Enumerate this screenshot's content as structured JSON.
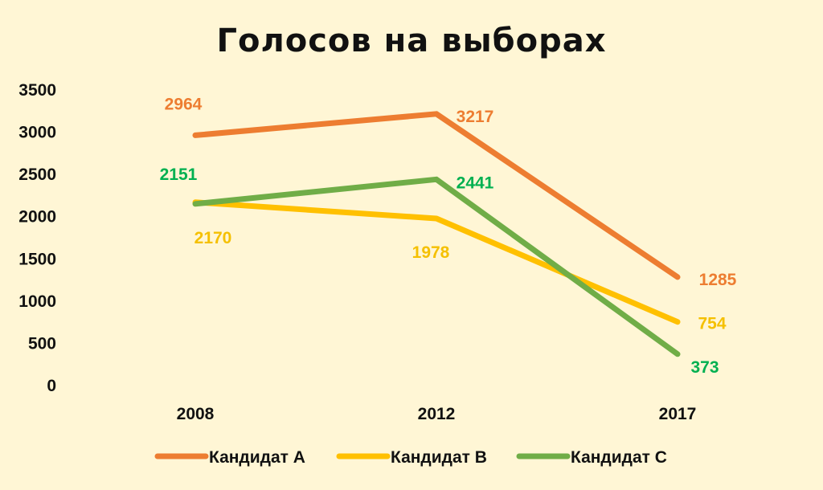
{
  "chart_data": {
    "type": "line",
    "title": "Голосов на выборах",
    "xlabel": "",
    "ylabel": "",
    "categories": [
      "2008",
      "2012",
      "2017"
    ],
    "ylim": [
      0,
      3500
    ],
    "yticks": [
      "0",
      "500",
      "1000",
      "1500",
      "2000",
      "2500",
      "3000",
      "3500"
    ],
    "grid": false,
    "legend_position": "bottom",
    "series": [
      {
        "name": "Кандидат А",
        "color": "#ED7D31",
        "values": [
          2964,
          3217,
          1285
        ],
        "labels": [
          "2964",
          "3217",
          "1285"
        ]
      },
      {
        "name": "Кандидат В",
        "color": "#FFC000",
        "values": [
          2170,
          1978,
          754
        ],
        "labels": [
          "2170",
          "1978",
          "754"
        ]
      },
      {
        "name": "Кандидат С",
        "color": "#70AD47",
        "values": [
          2151,
          2441,
          373
        ],
        "labels": [
          "2151",
          "2441",
          "373"
        ]
      }
    ],
    "label_colors": {
      "Кандидат А": "#ED7D31",
      "Кандидат В": "#F5C000",
      "Кандидат С": "#00B050"
    }
  }
}
